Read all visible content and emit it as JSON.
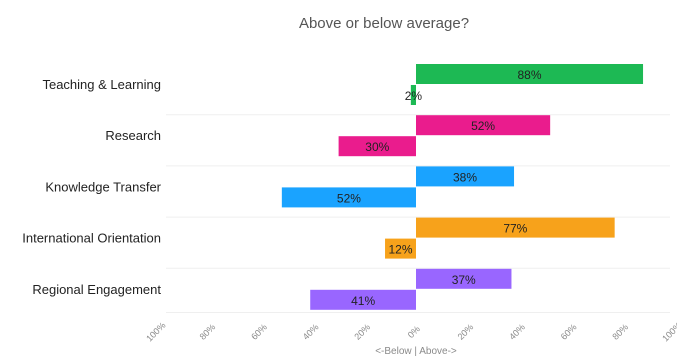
{
  "chart_data": {
    "type": "bar",
    "orientation": "horizontal",
    "title": "Above or below average?",
    "xlabel": "<-Below | Above->",
    "xlim": [
      -100,
      100
    ],
    "x_ticks": [
      "100%",
      "80%",
      "60%",
      "40%",
      "20%",
      "0%",
      "20%",
      "40%",
      "60%",
      "80%",
      "100%"
    ],
    "grid": true,
    "categories": [
      {
        "name": "Teaching & Learning",
        "color": "#1db954",
        "bars": [
          {
            "value": 88,
            "label": "88%"
          },
          {
            "value": -2,
            "label": "2%"
          }
        ]
      },
      {
        "name": "Research",
        "color": "#ea1c8d",
        "bars": [
          {
            "value": 52,
            "label": "52%"
          },
          {
            "value": -30,
            "label": "30%"
          }
        ]
      },
      {
        "name": "Knowledge Transfer",
        "color": "#1aa3ff",
        "bars": [
          {
            "value": 38,
            "label": "38%"
          },
          {
            "value": -52,
            "label": "52%"
          }
        ]
      },
      {
        "name": "International Orientation",
        "color": "#f7a21b",
        "bars": [
          {
            "value": 77,
            "label": "77%"
          },
          {
            "value": -12,
            "label": "12%"
          }
        ]
      },
      {
        "name": "Regional Engagement",
        "color": "#9966ff",
        "bars": [
          {
            "value": 37,
            "label": "37%"
          },
          {
            "value": -41,
            "label": "41%"
          }
        ]
      }
    ]
  }
}
